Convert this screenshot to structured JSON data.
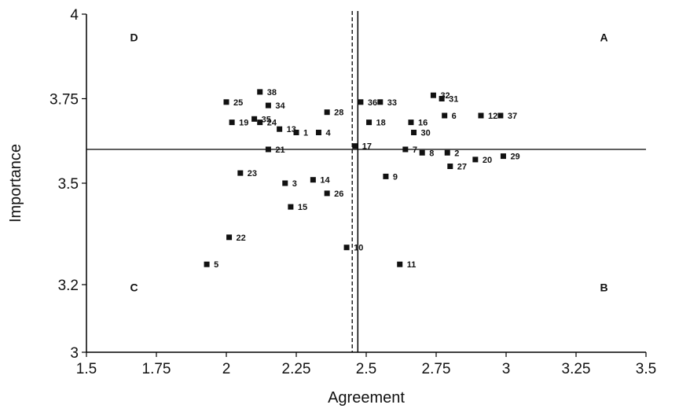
{
  "chart_data": {
    "type": "scatter",
    "xlabel": "Agreement",
    "ylabel": "Importance",
    "xlim": [
      1.5,
      3.5
    ],
    "ylim": [
      3,
      4
    ],
    "x_ticks": [
      "1.5",
      "1.75",
      "2",
      "2.25",
      "2.5",
      "2.75",
      "3",
      "3.25",
      "3.5"
    ],
    "y_ticks": [
      "4",
      "3.75",
      "3.5",
      "3.2",
      "3"
    ],
    "grid": false,
    "reference_lines": {
      "solid_vertical_x": 2.47,
      "dashed_vertical_x": 2.45,
      "solid_horizontal_y": 3.6
    },
    "quadrants": [
      {
        "label": "D",
        "x": 1.67,
        "y": 3.92
      },
      {
        "label": "A",
        "x": 3.35,
        "y": 3.92
      },
      {
        "label": "C",
        "x": 1.67,
        "y": 3.18
      },
      {
        "label": "B",
        "x": 3.35,
        "y": 3.18
      }
    ],
    "points": [
      {
        "label": "38",
        "x": 2.12,
        "y": 3.77
      },
      {
        "label": "25",
        "x": 2.0,
        "y": 3.74
      },
      {
        "label": "34",
        "x": 2.15,
        "y": 3.73
      },
      {
        "label": "35",
        "x": 2.1,
        "y": 3.69
      },
      {
        "label": "24",
        "x": 2.12,
        "y": 3.68
      },
      {
        "label": "19",
        "x": 2.02,
        "y": 3.68
      },
      {
        "label": "13",
        "x": 2.19,
        "y": 3.66
      },
      {
        "label": "1",
        "x": 2.25,
        "y": 3.65
      },
      {
        "label": "4",
        "x": 2.33,
        "y": 3.65
      },
      {
        "label": "28",
        "x": 2.36,
        "y": 3.71
      },
      {
        "label": "21",
        "x": 2.15,
        "y": 3.6
      },
      {
        "label": "17",
        "x": 2.46,
        "y": 3.61
      },
      {
        "label": "36",
        "x": 2.48,
        "y": 3.74
      },
      {
        "label": "33",
        "x": 2.55,
        "y": 3.74
      },
      {
        "label": "18",
        "x": 2.51,
        "y": 3.68
      },
      {
        "label": "32",
        "x": 2.74,
        "y": 3.76
      },
      {
        "label": "31",
        "x": 2.77,
        "y": 3.75
      },
      {
        "label": "12",
        "x": 2.91,
        "y": 3.7
      },
      {
        "label": "37",
        "x": 2.98,
        "y": 3.7
      },
      {
        "label": "6",
        "x": 2.78,
        "y": 3.7
      },
      {
        "label": "16",
        "x": 2.66,
        "y": 3.68
      },
      {
        "label": "30",
        "x": 2.67,
        "y": 3.65
      },
      {
        "label": "7",
        "x": 2.64,
        "y": 3.6
      },
      {
        "label": "8",
        "x": 2.7,
        "y": 3.59
      },
      {
        "label": "2",
        "x": 2.79,
        "y": 3.59
      },
      {
        "label": "20",
        "x": 2.89,
        "y": 3.57
      },
      {
        "label": "29",
        "x": 2.99,
        "y": 3.58
      },
      {
        "label": "27",
        "x": 2.8,
        "y": 3.55
      },
      {
        "label": "9",
        "x": 2.57,
        "y": 3.52
      },
      {
        "label": "23",
        "x": 2.05,
        "y": 3.53
      },
      {
        "label": "3",
        "x": 2.21,
        "y": 3.5
      },
      {
        "label": "14",
        "x": 2.31,
        "y": 3.51
      },
      {
        "label": "26",
        "x": 2.36,
        "y": 3.47
      },
      {
        "label": "15",
        "x": 2.23,
        "y": 3.43
      },
      {
        "label": "22",
        "x": 2.01,
        "y": 3.34
      },
      {
        "label": "10",
        "x": 2.43,
        "y": 3.31
      },
      {
        "label": "5",
        "x": 1.93,
        "y": 3.26
      },
      {
        "label": "11",
        "x": 2.62,
        "y": 3.26
      }
    ]
  }
}
